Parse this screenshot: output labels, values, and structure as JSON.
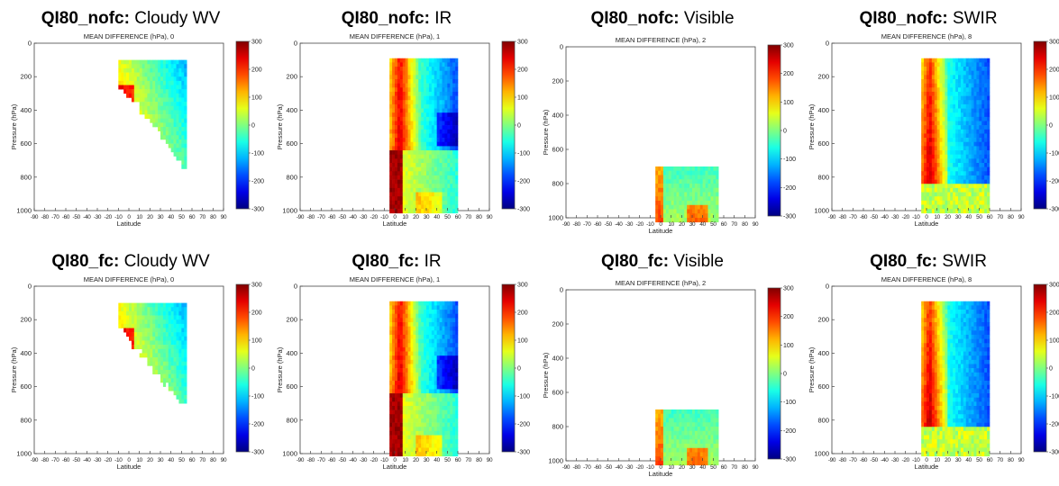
{
  "figure": {
    "rows": [
      {
        "product": "QI80_nofc"
      },
      {
        "product": "QI80_fc"
      }
    ]
  },
  "chart_data": [
    {
      "type": "heatmap",
      "heading_bold": "QI80_nofc:",
      "heading_text": "Cloudy WV",
      "title": "MEAN DIFFERENCE (hPa), 0",
      "xlabel": "Latitude",
      "ylabel": "Pressure (hPa)",
      "xlim": [
        -90,
        90
      ],
      "ylim": [
        1000,
        0
      ],
      "xticks": [
        -90,
        -80,
        -70,
        -60,
        -50,
        -40,
        -30,
        -20,
        -10,
        0,
        10,
        20,
        30,
        40,
        50,
        60,
        70,
        80,
        90
      ],
      "yticks": [
        0,
        200,
        400,
        600,
        800,
        1000
      ],
      "colorbar": {
        "range": [
          -300,
          300
        ],
        "ticks": [
          300,
          200,
          100,
          0,
          -100,
          -200,
          -300
        ]
      },
      "data_extent": {
        "lat": [
          -10,
          55
        ],
        "pressure": [
          100,
          760
        ]
      },
      "pattern": "wv"
    },
    {
      "type": "heatmap",
      "heading_bold": "QI80_nofc:",
      "heading_text": "IR",
      "title": "MEAN DIFFERENCE (hPa), 1",
      "xlabel": "Latitude",
      "ylabel": "Pressure (hPa)",
      "xlim": [
        -90,
        90
      ],
      "ylim": [
        1000,
        0
      ],
      "xticks": [
        -90,
        -80,
        -70,
        -60,
        -50,
        -40,
        -30,
        -20,
        -10,
        0,
        10,
        20,
        30,
        40,
        50,
        60,
        70,
        80,
        90
      ],
      "yticks": [
        0,
        200,
        400,
        600,
        800,
        1000
      ],
      "colorbar": {
        "range": [
          -300,
          300
        ],
        "ticks": [
          300,
          200,
          100,
          0,
          -100,
          -200,
          -300
        ]
      },
      "data_extent": {
        "lat": [
          -5,
          60
        ],
        "pressure": [
          90,
          1010
        ]
      },
      "pattern": "ir"
    },
    {
      "type": "heatmap",
      "heading_bold": "QI80_nofc:",
      "heading_text": "Visible",
      "title": "MEAN DIFFERENCE (hPa), 2",
      "xlabel": "Latitude",
      "ylabel": "Pressure (hPa)",
      "xlim": [
        -90,
        90
      ],
      "ylim": [
        1000,
        0
      ],
      "xticks": [
        -90,
        -80,
        -70,
        -60,
        -50,
        -40,
        -30,
        -20,
        -10,
        0,
        10,
        20,
        30,
        40,
        50,
        60,
        70,
        80,
        90
      ],
      "yticks": [
        0,
        200,
        400,
        600,
        800,
        1000
      ],
      "colorbar": {
        "range": [
          -300,
          300
        ],
        "ticks": [
          300,
          200,
          100,
          0,
          -100,
          -200,
          -300
        ]
      },
      "data_extent": {
        "lat": [
          -5,
          55
        ],
        "pressure": [
          700,
          1010
        ]
      },
      "pattern": "vis"
    },
    {
      "type": "heatmap",
      "heading_bold": "QI80_nofc:",
      "heading_text": "SWIR",
      "title": "MEAN DIFFERENCE (hPa), 8",
      "xlabel": "Latitude",
      "ylabel": "Pressure (hPa)",
      "xlim": [
        -90,
        90
      ],
      "ylim": [
        1000,
        0
      ],
      "xticks": [
        -90,
        -80,
        -70,
        -60,
        -50,
        -40,
        -30,
        -20,
        -10,
        0,
        10,
        20,
        30,
        40,
        50,
        60,
        70,
        80,
        90
      ],
      "yticks": [
        0,
        200,
        400,
        600,
        800,
        1000
      ],
      "colorbar": {
        "range": [
          -300,
          300
        ],
        "ticks": [
          300,
          200,
          100,
          0,
          -100,
          -200,
          -300
        ]
      },
      "data_extent": {
        "lat": [
          -5,
          60
        ],
        "pressure": [
          90,
          1010
        ]
      },
      "pattern": "swir"
    },
    {
      "type": "heatmap",
      "heading_bold": "QI80_fc:",
      "heading_text": "Cloudy WV",
      "title": "MEAN DIFFERENCE (hPa), 0",
      "xlabel": "Latitude",
      "ylabel": "Pressure (hPa)",
      "xlim": [
        -90,
        90
      ],
      "ylim": [
        1000,
        0
      ],
      "xticks": [
        -90,
        -80,
        -70,
        -60,
        -50,
        -40,
        -30,
        -20,
        -10,
        0,
        10,
        20,
        30,
        40,
        50,
        60,
        70,
        80,
        90
      ],
      "yticks": [
        0,
        200,
        400,
        600,
        800,
        1000
      ],
      "colorbar": {
        "range": [
          -300,
          300
        ],
        "ticks": [
          300,
          200,
          100,
          0,
          -100,
          -200,
          -300
        ]
      },
      "data_extent": {
        "lat": [
          -10,
          55
        ],
        "pressure": [
          100,
          700
        ]
      },
      "pattern": "wv"
    },
    {
      "type": "heatmap",
      "heading_bold": "QI80_fc:",
      "heading_text": "IR",
      "title": "MEAN DIFFERENCE (hPa), 1",
      "xlabel": "Latitude",
      "ylabel": "Pressure (hPa)",
      "xlim": [
        -90,
        90
      ],
      "ylim": [
        1000,
        0
      ],
      "xticks": [
        -90,
        -80,
        -70,
        -60,
        -50,
        -40,
        -30,
        -20,
        -10,
        0,
        10,
        20,
        30,
        40,
        50,
        60,
        70,
        80,
        90
      ],
      "yticks": [
        0,
        200,
        400,
        600,
        800,
        1000
      ],
      "colorbar": {
        "range": [
          -300,
          300
        ],
        "ticks": [
          300,
          200,
          100,
          0,
          -100,
          -200,
          -300
        ]
      },
      "data_extent": {
        "lat": [
          -5,
          60
        ],
        "pressure": [
          90,
          1010
        ]
      },
      "pattern": "ir"
    },
    {
      "type": "heatmap",
      "heading_bold": "QI80_fc:",
      "heading_text": "Visible",
      "title": "MEAN DIFFERENCE (hPa), 2",
      "xlabel": "Latitude",
      "ylabel": "Pressure (hPa)",
      "xlim": [
        -90,
        90
      ],
      "ylim": [
        1000,
        0
      ],
      "xticks": [
        -90,
        -80,
        -70,
        -60,
        -50,
        -40,
        -30,
        -20,
        -10,
        0,
        10,
        20,
        30,
        40,
        50,
        60,
        70,
        80,
        90
      ],
      "yticks": [
        0,
        200,
        400,
        600,
        800,
        1000
      ],
      "colorbar": {
        "range": [
          -300,
          300
        ],
        "ticks": [
          300,
          200,
          100,
          0,
          -100,
          -200,
          -300
        ]
      },
      "data_extent": {
        "lat": [
          -5,
          55
        ],
        "pressure": [
          700,
          1010
        ]
      },
      "pattern": "vis"
    },
    {
      "type": "heatmap",
      "heading_bold": "QI80_fc:",
      "heading_text": "SWIR",
      "title": "MEAN DIFFERENCE (hPa), 8",
      "xlabel": "Latitude",
      "ylabel": "Pressure (hPa)",
      "xlim": [
        -90,
        90
      ],
      "ylim": [
        1000,
        0
      ],
      "xticks": [
        -90,
        -80,
        -70,
        -60,
        -50,
        -40,
        -30,
        -20,
        -10,
        0,
        10,
        20,
        30,
        40,
        50,
        60,
        70,
        80,
        90
      ],
      "yticks": [
        0,
        200,
        400,
        600,
        800,
        1000
      ],
      "colorbar": {
        "range": [
          -300,
          300
        ],
        "ticks": [
          300,
          200,
          100,
          0,
          -100,
          -200,
          -300
        ]
      },
      "data_extent": {
        "lat": [
          -5,
          60
        ],
        "pressure": [
          90,
          1010
        ]
      },
      "pattern": "swir"
    }
  ]
}
